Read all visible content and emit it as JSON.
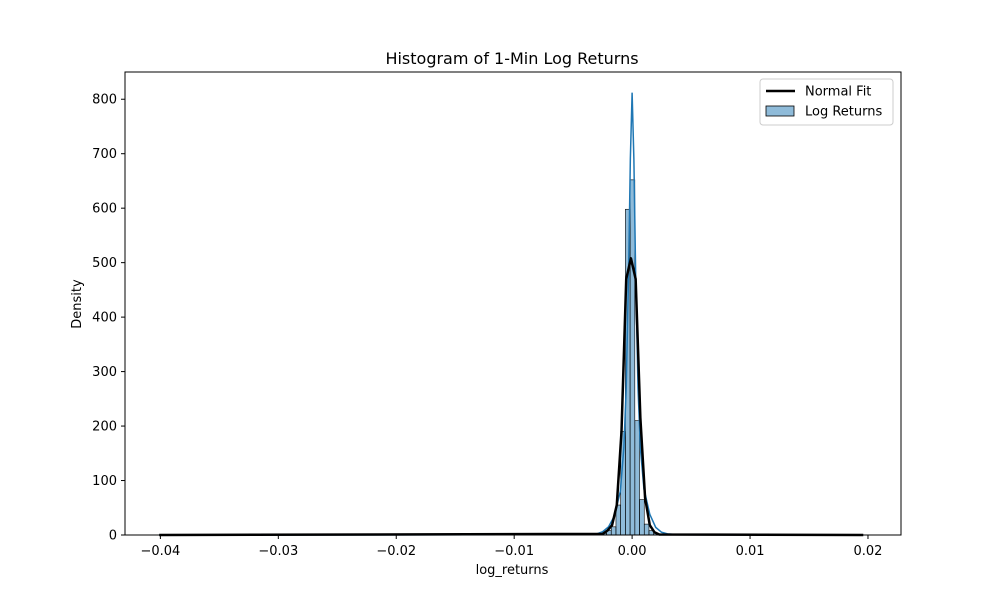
{
  "chart_data": {
    "type": "histogram",
    "title": "Histogram of 1-Min Log Returns",
    "xlabel": "log_returns",
    "ylabel": "Density",
    "xlim": [
      -0.043,
      0.0228
    ],
    "ylim": [
      0,
      850
    ],
    "xticks": [
      -0.04,
      -0.03,
      -0.02,
      -0.01,
      0.0,
      0.01,
      0.02
    ],
    "xtick_labels": [
      "−0.04",
      "−0.03",
      "−0.02",
      "−0.01",
      "0.00",
      "0.01",
      "0.02"
    ],
    "yticks": [
      0,
      100,
      200,
      300,
      400,
      500,
      600,
      700,
      800
    ],
    "ytick_labels": [
      "0",
      "100",
      "200",
      "300",
      "400",
      "500",
      "600",
      "700",
      "800"
    ],
    "grid": false,
    "legend": {
      "position": "top-right",
      "entries": [
        "Normal Fit",
        "Log Returns"
      ]
    },
    "colors": {
      "bar_fill": "#1f77b4",
      "bar_fill_opacity": 0.5,
      "bar_edge": "#000000",
      "kde_line": "#1f77b4",
      "normal_fit_line": "#000000"
    },
    "bins": {
      "range": [
        -0.0401,
        0.0196
      ],
      "count": 150,
      "width": 0.000398,
      "counts_start_edge": -0.00257,
      "density_values": [
        3,
        8,
        15,
        55,
        190,
        598,
        652,
        210,
        65,
        20,
        8,
        3
      ]
    },
    "series": [
      {
        "name": "Log Returns",
        "kind": "histogram",
        "x": [
          -0.00237,
          -0.00197,
          -0.00157,
          -0.00117,
          -0.00077,
          -0.00037,
          3e-05,
          0.00043,
          0.00083,
          0.00123,
          0.00163,
          0.00203
        ],
        "values": [
          3,
          8,
          15,
          55,
          190,
          598,
          652,
          210,
          65,
          20,
          8,
          3
        ]
      },
      {
        "name": "kde",
        "kind": "kde",
        "x": [
          -0.0401,
          -0.004,
          -0.003,
          -0.0025,
          -0.002,
          -0.0015,
          -0.001,
          -0.0007,
          -0.0005,
          -0.0003,
          -0.00015,
          0.0,
          0.00015,
          0.0003,
          0.0005,
          0.0007,
          0.001,
          0.0015,
          0.002,
          0.0025,
          0.003,
          0.004,
          0.0196
        ],
        "values": [
          0,
          0.5,
          2,
          6,
          15,
          35,
          80,
          160,
          270,
          480,
          690,
          812,
          690,
          480,
          270,
          160,
          85,
          38,
          14,
          5,
          2,
          0.5,
          0
        ]
      },
      {
        "name": "Normal Fit",
        "kind": "line",
        "x": [
          -0.0401,
          -0.0025,
          -0.0021,
          -0.0017,
          -0.0013,
          -0.0009,
          -0.0005,
          -0.0001,
          0.0003,
          0.0007,
          0.0011,
          0.0015,
          0.0019,
          0.0023,
          0.0196
        ],
        "values": [
          0,
          2,
          8,
          18,
          55,
          190,
          470,
          508,
          470,
          215,
          68,
          18,
          5,
          1,
          0
        ]
      }
    ]
  }
}
